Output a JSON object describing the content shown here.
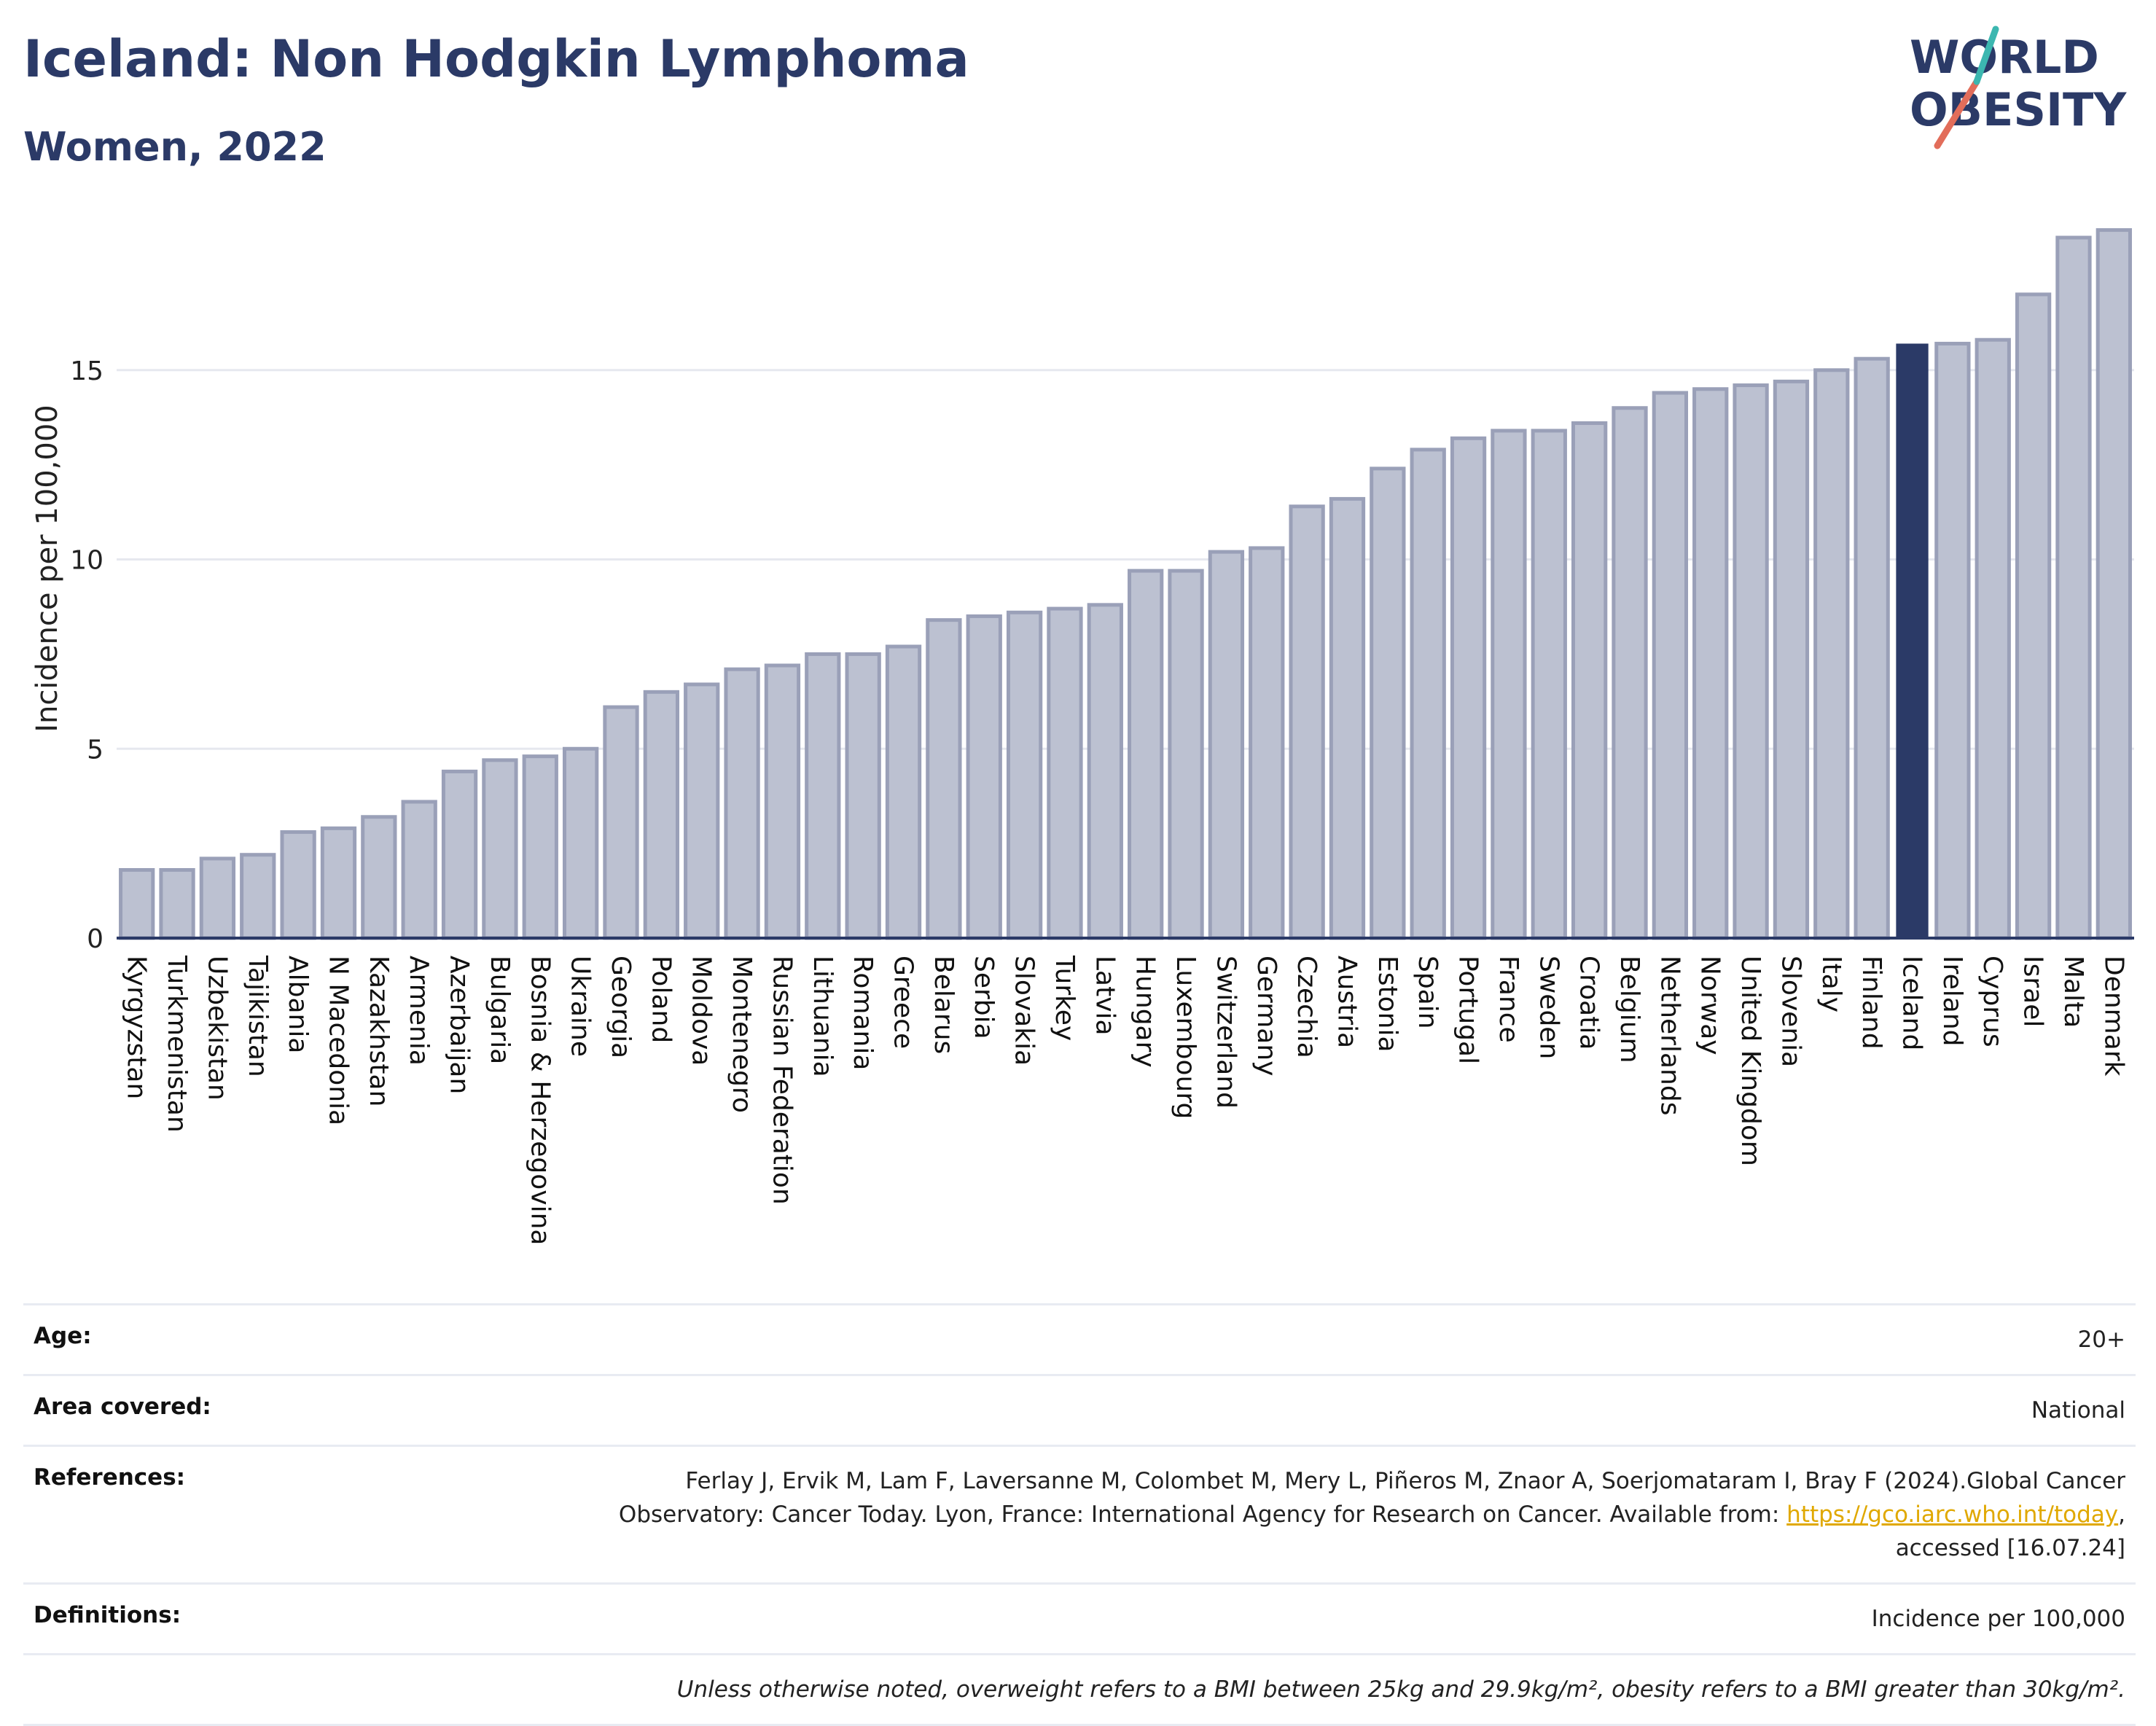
{
  "header": {
    "title": "Iceland: Non Hodgkin Lymphoma",
    "subtitle": "Women, 2022"
  },
  "logo": {
    "line1": "WORLD",
    "line2": "OBESITY",
    "accent_colors": [
      "#e26d5a",
      "#3cb7b0"
    ]
  },
  "colors": {
    "bar_default": "#bcc1d1",
    "bar_border": "#9aa0b8",
    "bar_highlight": "#2b3a67",
    "grid": "#e6e8ef",
    "axis": "#2b3a67"
  },
  "chart_data": {
    "type": "bar",
    "title": "",
    "xlabel": "",
    "ylabel": "Incidence per 100,000",
    "ylim": [
      0,
      19
    ],
    "yticks": [
      0,
      5,
      10,
      15
    ],
    "highlight": "Iceland",
    "grid": true,
    "categories": [
      "Kyrgyzstan",
      "Turkmenistan",
      "Uzbekistan",
      "Tajikistan",
      "Albania",
      "N Macedonia",
      "Kazakhstan",
      "Armenia",
      "Azerbaijan",
      "Bulgaria",
      "Bosnia & Herzegovina",
      "Ukraine",
      "Georgia",
      "Poland",
      "Moldova",
      "Montenegro",
      "Russian Federation",
      "Lithuania",
      "Romania",
      "Greece",
      "Belarus",
      "Serbia",
      "Slovakia",
      "Turkey",
      "Latvia",
      "Hungary",
      "Luxembourg",
      "Switzerland",
      "Germany",
      "Czechia",
      "Austria",
      "Estonia",
      "Spain",
      "Portugal",
      "France",
      "Sweden",
      "Croatia",
      "Belgium",
      "Netherlands",
      "Norway",
      "United Kingdom",
      "Slovenia",
      "Italy",
      "Finland",
      "Iceland",
      "Ireland",
      "Cyprus",
      "Israel",
      "Malta",
      "Denmark"
    ],
    "values": [
      1.8,
      1.8,
      2.1,
      2.2,
      2.8,
      2.9,
      3.2,
      3.6,
      4.4,
      4.7,
      4.8,
      5.0,
      6.1,
      6.5,
      6.7,
      7.1,
      7.2,
      7.5,
      7.5,
      7.7,
      8.4,
      8.5,
      8.6,
      8.7,
      8.8,
      9.7,
      9.7,
      10.2,
      10.3,
      11.4,
      11.6,
      12.4,
      12.9,
      13.2,
      13.4,
      13.4,
      13.6,
      14.0,
      14.4,
      14.5,
      14.6,
      14.7,
      15.0,
      15.3,
      15.7,
      15.7,
      15.8,
      17.0,
      18.5,
      18.7
    ]
  },
  "meta": {
    "age_label": "Age:",
    "age_value": "20+",
    "area_label": "Area covered:",
    "area_value": "National",
    "references_label": "References:",
    "references_text": "Ferlay J, Ervik M, Lam F, Laversanne M, Colombet M, Mery L, Piñeros M, Znaor A, Soerjomataram I, Bray F (2024).Global Cancer Observatory: Cancer Today. Lyon, France: International Agency for Research on Cancer. Available from: ",
    "references_link": "https://gco.iarc.who.int/today",
    "references_suffix": ", accessed [16.07.24]",
    "definitions_label": "Definitions:",
    "definitions_value": "Incidence per 100,000",
    "note": "Unless otherwise noted, overweight refers to a BMI between 25kg and 29.9kg/m², obesity refers to a BMI greater than 30kg/m²."
  }
}
